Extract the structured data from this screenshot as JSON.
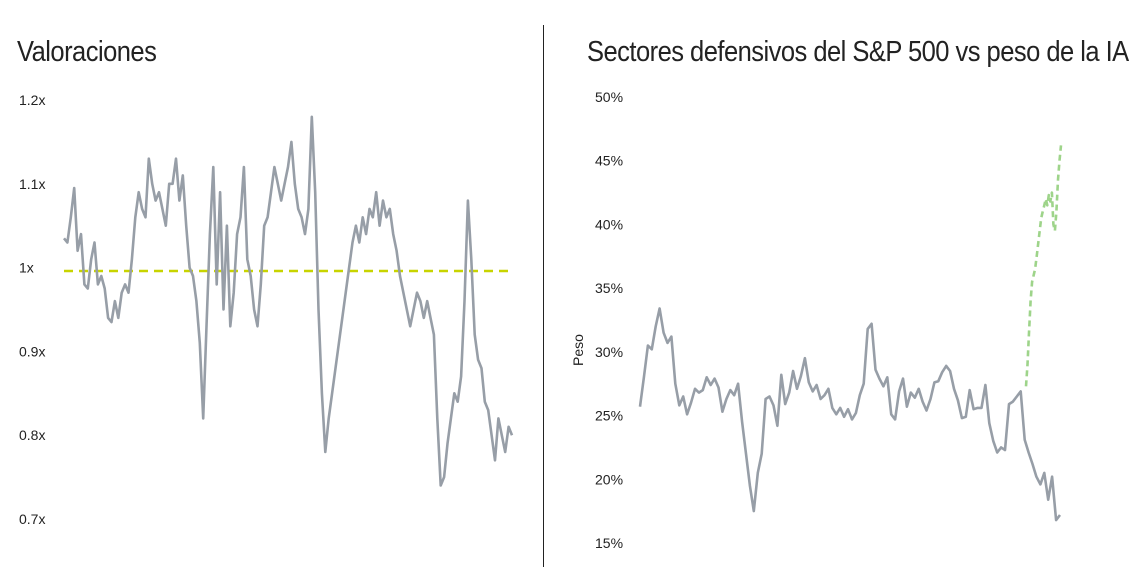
{
  "chart_data": [
    {
      "type": "line",
      "title": "Valoraciones",
      "xlabel": "",
      "ylabel": "",
      "ylim": [
        0.7,
        1.2
      ],
      "yticks": [
        1.2,
        1.1,
        1.0,
        0.9,
        0.8,
        0.7
      ],
      "ytick_labels": [
        "1.2x",
        "1.1x",
        "1x",
        "0.9x",
        "0.8x",
        "0.7x"
      ],
      "grid": false,
      "reference_line": {
        "y": 0.996,
        "style": "dashed",
        "color": "#c8d400"
      },
      "line_color": "#979ea7",
      "series": [
        {
          "values": [
            1.035,
            1.03,
            1.06,
            1.095,
            1.02,
            1.04,
            0.98,
            0.975,
            1.01,
            1.03,
            0.98,
            0.99,
            0.975,
            0.94,
            0.935,
            0.96,
            0.94,
            0.97,
            0.98,
            0.97,
            1.01,
            1.06,
            1.09,
            1.07,
            1.06,
            1.13,
            1.1,
            1.08,
            1.09,
            1.07,
            1.05,
            1.1,
            1.1,
            1.13,
            1.08,
            1.11,
            1.05,
            1.0,
            0.99,
            0.96,
            0.91,
            0.82,
            0.93,
            1.04,
            1.12,
            0.98,
            1.09,
            0.95,
            1.05,
            0.93,
            0.97,
            1.04,
            1.06,
            1.12,
            1.01,
            0.99,
            0.95,
            0.93,
            0.98,
            1.05,
            1.06,
            1.09,
            1.12,
            1.1,
            1.08,
            1.1,
            1.12,
            1.15,
            1.1,
            1.07,
            1.06,
            1.04,
            1.07,
            1.18,
            1.09,
            0.95,
            0.85,
            0.78,
            0.82,
            0.85,
            0.88,
            0.91,
            0.94,
            0.97,
            1.0,
            1.03,
            1.05,
            1.03,
            1.06,
            1.04,
            1.07,
            1.06,
            1.09,
            1.05,
            1.08,
            1.06,
            1.07,
            1.04,
            1.02,
            0.99,
            0.97,
            0.95,
            0.93,
            0.95,
            0.97,
            0.96,
            0.94,
            0.96,
            0.94,
            0.92,
            0.82,
            0.74,
            0.75,
            0.79,
            0.82,
            0.85,
            0.84,
            0.87,
            0.96,
            1.08,
            1.01,
            0.92,
            0.89,
            0.88,
            0.84,
            0.83,
            0.8,
            0.77,
            0.82,
            0.8,
            0.78,
            0.81,
            0.8
          ]
        }
      ]
    },
    {
      "type": "line",
      "title": "Sectores defensivos del S&P 500 vs peso de la IA",
      "xlabel": "",
      "ylabel": "Peso",
      "ylim": [
        15,
        50
      ],
      "yticks": [
        50,
        45,
        40,
        35,
        30,
        25,
        20,
        15
      ],
      "ytick_labels": [
        "50%",
        "45%",
        "40%",
        "35%",
        "30%",
        "25%",
        "20%",
        "15%"
      ],
      "grid": false,
      "series": [
        {
          "color": "#979ea7",
          "style": "solid",
          "values": [
            25.7,
            28.0,
            30.5,
            30.2,
            32.0,
            33.4,
            31.5,
            30.7,
            31.2,
            27.5,
            25.8,
            26.5,
            25.1,
            26.0,
            27.1,
            26.8,
            27.0,
            28.0,
            27.4,
            27.9,
            27.2,
            25.3,
            26.3,
            27.0,
            26.6,
            27.5,
            24.5,
            22.0,
            19.5,
            17.5,
            20.5,
            22.0,
            26.3,
            26.5,
            25.8,
            24.2,
            28.2,
            25.9,
            26.8,
            28.5,
            27.1,
            28.1,
            29.5,
            27.6,
            26.9,
            27.4,
            26.3,
            26.6,
            27.1,
            25.6,
            25.1,
            25.6,
            24.9,
            25.5,
            24.7,
            25.2,
            26.6,
            27.5,
            31.8,
            32.2,
            28.6,
            27.9,
            27.3,
            28.0,
            25.1,
            24.7,
            26.9,
            27.9,
            25.7,
            26.8,
            26.4,
            27.1,
            26.1,
            25.4,
            26.3,
            27.6,
            27.7,
            28.4,
            28.9,
            28.5,
            27.1,
            26.2,
            24.8,
            24.9,
            27.0,
            25.5,
            25.6,
            25.6,
            27.4,
            24.4,
            23.0,
            22.1,
            22.5,
            22.3,
            25.9,
            26.1,
            26.5,
            26.9,
            23.1,
            22.1,
            21.2,
            20.2,
            19.6,
            20.5,
            18.4,
            20.2,
            16.8,
            17.2
          ]
        },
        {
          "color": "#9ed48a",
          "style": "dashed",
          "values": [
            27.3,
            29.0,
            31.5,
            34.0,
            35.5,
            36.0,
            36.5,
            37.5,
            38.5,
            39.5,
            40.5,
            41.0,
            41.5,
            42.0,
            41.5,
            42.3,
            41.8,
            42.5,
            40.0,
            39.5,
            41.0,
            43.5,
            45.0,
            46.2
          ]
        }
      ]
    }
  ]
}
